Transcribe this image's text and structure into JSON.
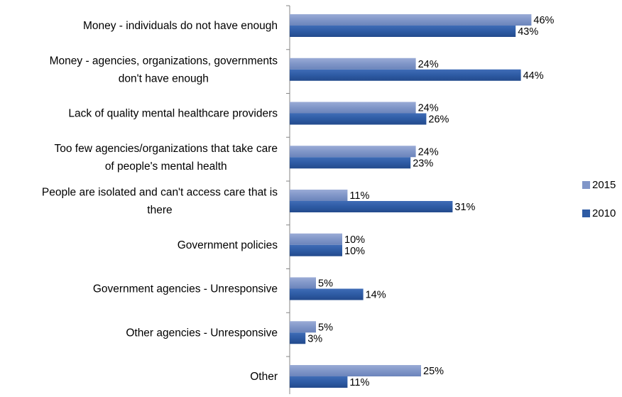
{
  "chart_data": {
    "type": "bar",
    "orientation": "horizontal",
    "categories": [
      "Money - individuals do not have enough",
      "Money - agencies, organizations, governments don't have enough",
      "Lack of quality mental healthcare providers",
      "Too few agencies/organizations that take care of people's mental health",
      "People are isolated and can't access care that is there",
      "Government policies",
      "Government agencies - Unresponsive",
      "Other agencies - Unresponsive",
      "Other"
    ],
    "category_lines": [
      [
        "Money - individuals do not have enough"
      ],
      [
        "Money - agencies, organizations, governments",
        "don't have enough"
      ],
      [
        "Lack of quality mental healthcare providers"
      ],
      [
        "Too few agencies/organizations that take care",
        "of people's mental health"
      ],
      [
        "People are isolated and can't access care that is",
        "there"
      ],
      [
        "Government policies"
      ],
      [
        "Government agencies - Unresponsive"
      ],
      [
        "Other agencies - Unresponsive"
      ],
      [
        "Other"
      ]
    ],
    "series": [
      {
        "name": "2015",
        "color": "#8096c8",
        "values": [
          46,
          24,
          24,
          24,
          11,
          10,
          5,
          5,
          25
        ]
      },
      {
        "name": "2010",
        "color": "#2e5ba4",
        "values": [
          43,
          44,
          26,
          23,
          31,
          10,
          14,
          3,
          11
        ]
      }
    ],
    "value_suffix": "%",
    "xlim": [
      0,
      50
    ],
    "grid": false,
    "legend_position": "right"
  }
}
